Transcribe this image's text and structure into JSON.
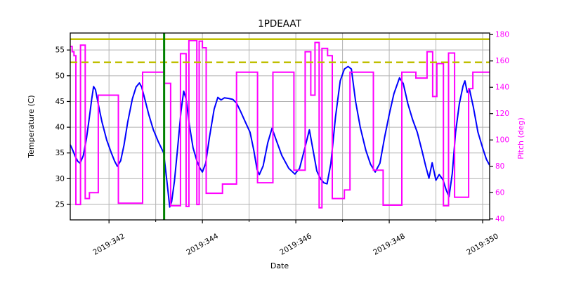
{
  "chart_data": {
    "type": "line",
    "title": "1PDEAAT",
    "xlabel": "Date",
    "ylabel_left": "Temperature (C)",
    "ylabel_right": "Pitch (deg)",
    "xlim": [
      341.17,
      350.15
    ],
    "ylim_left": [
      22.0,
      58.3
    ],
    "ylim_right": [
      39.3,
      181.2
    ],
    "grid": true,
    "xticks_major": [
      {
        "value": 342,
        "label": "2019:342"
      },
      {
        "value": 344,
        "label": "2019:344"
      },
      {
        "value": 346,
        "label": "2019:346"
      },
      {
        "value": 348,
        "label": "2019:348"
      },
      {
        "value": 350,
        "label": "2019:350"
      }
    ],
    "xticks_minor": [
      343,
      345,
      347,
      349
    ],
    "xgrid": [
      342,
      343,
      344,
      345,
      346,
      347,
      348,
      349,
      350
    ],
    "yticks_left": [
      25,
      30,
      35,
      40,
      45,
      50,
      55
    ],
    "yticks_right": [
      40,
      60,
      80,
      100,
      120,
      140,
      160,
      180
    ],
    "limit_lines": [
      {
        "name": "yellow-limit",
        "value": 57.1,
        "style": "solid"
      },
      {
        "name": "planning-limit",
        "value": 52.6,
        "style": "dashed"
      }
    ],
    "vline": {
      "name": "now-line",
      "value": 343.18
    },
    "colors": {
      "temperature": "#0000ff",
      "pitch": "#ff00ff",
      "limits": "#bfbf00",
      "vline": "#008000",
      "grid": "#b3b3b3",
      "spine": "#000000",
      "text": "#000000"
    },
    "series": [
      {
        "name": "temperature",
        "axis": "left",
        "points": [
          [
            341.17,
            36.6
          ],
          [
            341.22,
            35.6
          ],
          [
            341.28,
            34.3
          ],
          [
            341.33,
            33.4
          ],
          [
            341.38,
            33.0
          ],
          [
            341.45,
            34.5
          ],
          [
            341.52,
            38.0
          ],
          [
            341.58,
            42.0
          ],
          [
            341.63,
            45.5
          ],
          [
            341.67,
            47.9
          ],
          [
            341.71,
            47.3
          ],
          [
            341.78,
            44.0
          ],
          [
            341.85,
            41.0
          ],
          [
            341.95,
            37.5
          ],
          [
            342.05,
            35.0
          ],
          [
            342.12,
            33.4
          ],
          [
            342.18,
            32.4
          ],
          [
            342.25,
            33.5
          ],
          [
            342.32,
            36.5
          ],
          [
            342.4,
            41.0
          ],
          [
            342.5,
            45.5
          ],
          [
            342.58,
            47.8
          ],
          [
            342.65,
            48.6
          ],
          [
            342.7,
            47.8
          ],
          [
            342.78,
            45.0
          ],
          [
            342.85,
            42.5
          ],
          [
            342.95,
            39.5
          ],
          [
            343.05,
            37.3
          ],
          [
            343.17,
            35.0
          ],
          [
            343.24,
            29.5
          ],
          [
            343.3,
            24.5
          ],
          [
            343.34,
            25.5
          ],
          [
            343.4,
            29.5
          ],
          [
            343.47,
            36.0
          ],
          [
            343.54,
            43.0
          ],
          [
            343.6,
            47.0
          ],
          [
            343.65,
            45.5
          ],
          [
            343.72,
            40.5
          ],
          [
            343.8,
            36.0
          ],
          [
            343.88,
            33.5
          ],
          [
            343.95,
            32.0
          ],
          [
            344.0,
            31.3
          ],
          [
            344.07,
            33.0
          ],
          [
            344.15,
            38.0
          ],
          [
            344.25,
            43.5
          ],
          [
            344.33,
            45.8
          ],
          [
            344.4,
            45.3
          ],
          [
            344.47,
            45.7
          ],
          [
            344.56,
            45.6
          ],
          [
            344.65,
            45.4
          ],
          [
            344.73,
            44.7
          ],
          [
            344.82,
            43.0
          ],
          [
            344.92,
            41.0
          ],
          [
            345.02,
            39.0
          ],
          [
            345.1,
            35.5
          ],
          [
            345.17,
            31.8
          ],
          [
            345.22,
            30.8
          ],
          [
            345.3,
            32.5
          ],
          [
            345.4,
            37.0
          ],
          [
            345.49,
            39.8
          ],
          [
            345.58,
            37.5
          ],
          [
            345.7,
            34.5
          ],
          [
            345.85,
            32.0
          ],
          [
            345.98,
            30.9
          ],
          [
            346.08,
            32.0
          ],
          [
            346.18,
            35.5
          ],
          [
            346.29,
            39.5
          ],
          [
            346.37,
            35.5
          ],
          [
            346.45,
            31.5
          ],
          [
            346.53,
            30.0
          ],
          [
            346.6,
            29.2
          ],
          [
            346.67,
            29.0
          ],
          [
            346.75,
            33.0
          ],
          [
            346.85,
            42.0
          ],
          [
            346.95,
            49.0
          ],
          [
            347.04,
            51.3
          ],
          [
            347.12,
            51.8
          ],
          [
            347.19,
            51.3
          ],
          [
            347.28,
            45.0
          ],
          [
            347.38,
            40.0
          ],
          [
            347.5,
            35.5
          ],
          [
            347.6,
            32.8
          ],
          [
            347.7,
            31.3
          ],
          [
            347.8,
            33.0
          ],
          [
            347.9,
            38.0
          ],
          [
            348.0,
            42.5
          ],
          [
            348.1,
            46.5
          ],
          [
            348.22,
            49.6
          ],
          [
            348.3,
            48.5
          ],
          [
            348.4,
            44.5
          ],
          [
            348.5,
            41.5
          ],
          [
            348.6,
            39.0
          ],
          [
            348.7,
            35.5
          ],
          [
            348.78,
            32.5
          ],
          [
            348.85,
            30.1
          ],
          [
            348.92,
            33.1
          ],
          [
            349.0,
            29.7
          ],
          [
            349.07,
            30.8
          ],
          [
            349.15,
            29.8
          ],
          [
            349.22,
            27.8
          ],
          [
            349.28,
            26.5
          ],
          [
            349.35,
            31.0
          ],
          [
            349.42,
            39.0
          ],
          [
            349.5,
            44.5
          ],
          [
            349.58,
            48.0
          ],
          [
            349.62,
            49.0
          ],
          [
            349.67,
            46.8
          ],
          [
            349.72,
            47.3
          ],
          [
            349.8,
            44.0
          ],
          [
            349.9,
            39.0
          ],
          [
            350.0,
            36.0
          ],
          [
            350.08,
            33.8
          ],
          [
            350.15,
            32.6
          ]
        ]
      },
      {
        "name": "pitch",
        "axis": "right",
        "step_segments": [
          [
            341.17,
            341.21,
            171
          ],
          [
            341.21,
            341.25,
            167
          ],
          [
            341.25,
            341.29,
            164
          ],
          [
            341.29,
            341.39,
            51
          ],
          [
            341.39,
            341.49,
            172
          ],
          [
            341.49,
            341.58,
            55.5
          ],
          [
            341.58,
            341.77,
            60
          ],
          [
            341.77,
            342.2,
            134
          ],
          [
            342.2,
            342.72,
            52
          ],
          [
            342.72,
            343.18,
            151.5
          ],
          [
            343.18,
            343.32,
            143
          ],
          [
            343.32,
            343.53,
            50
          ],
          [
            343.53,
            343.65,
            165.5
          ],
          [
            343.65,
            343.71,
            49.5
          ],
          [
            343.71,
            343.88,
            175.5
          ],
          [
            343.88,
            343.93,
            51
          ],
          [
            343.93,
            344.0,
            175
          ],
          [
            344.0,
            344.08,
            170
          ],
          [
            344.08,
            344.43,
            59.5
          ],
          [
            344.43,
            344.73,
            66.5
          ],
          [
            344.73,
            345.18,
            151.5
          ],
          [
            345.18,
            345.51,
            67.5
          ],
          [
            345.51,
            345.96,
            151.5
          ],
          [
            345.96,
            346.2,
            77
          ],
          [
            346.2,
            346.32,
            167
          ],
          [
            346.32,
            346.41,
            134
          ],
          [
            346.41,
            346.5,
            174
          ],
          [
            346.5,
            346.56,
            48.5
          ],
          [
            346.56,
            346.68,
            169.5
          ],
          [
            346.68,
            346.78,
            164
          ],
          [
            346.78,
            347.04,
            55.5
          ],
          [
            347.04,
            347.16,
            62
          ],
          [
            347.16,
            347.66,
            151.5
          ],
          [
            347.66,
            347.87,
            77
          ],
          [
            347.87,
            348.27,
            50.5
          ],
          [
            348.27,
            348.57,
            151.5
          ],
          [
            348.57,
            348.81,
            147
          ],
          [
            348.81,
            348.93,
            167
          ],
          [
            348.93,
            349.02,
            133
          ],
          [
            349.02,
            349.16,
            158
          ],
          [
            349.16,
            349.27,
            50
          ],
          [
            349.27,
            349.4,
            166
          ],
          [
            349.4,
            349.7,
            56.5
          ],
          [
            349.7,
            349.79,
            139
          ],
          [
            349.79,
            350.15,
            151.5
          ]
        ]
      }
    ]
  }
}
